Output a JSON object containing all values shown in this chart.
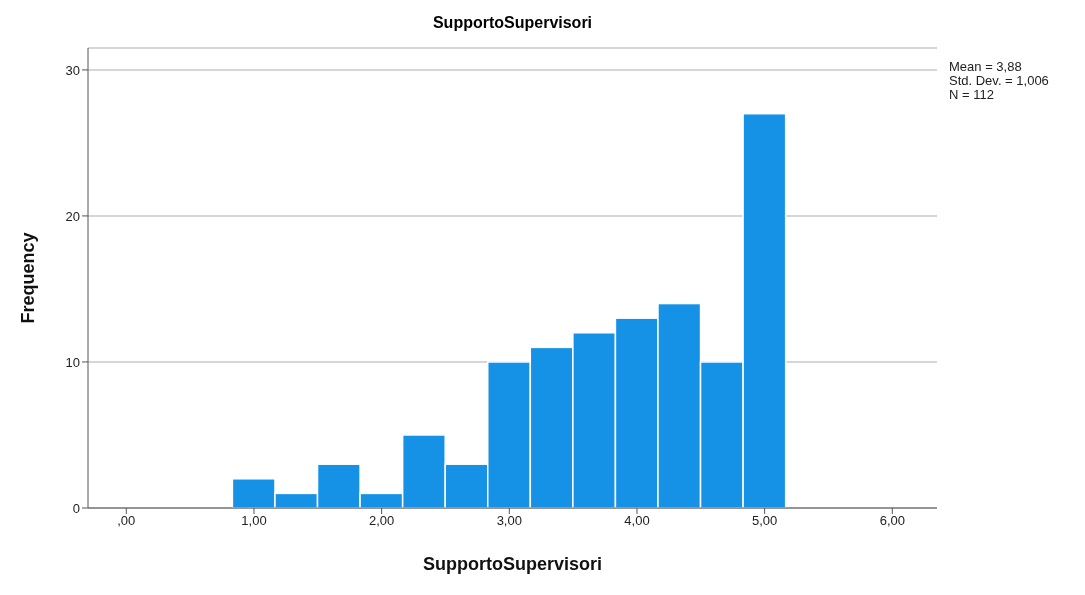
{
  "chart_data": {
    "type": "histogram",
    "title": "SupportoSupervisori",
    "xlabel": "SupportoSupervisori",
    "ylabel": "Frequency",
    "bins": [
      0.8333,
      1.1667,
      1.5,
      1.8333,
      2.1667,
      2.5,
      2.8333,
      3.1667,
      3.5,
      3.8333,
      4.1667,
      4.5,
      4.8333,
      5.1667
    ],
    "values": [
      2,
      1,
      3,
      1,
      5,
      3,
      10,
      11,
      12,
      13,
      14,
      10,
      27
    ],
    "color": "#1591e6",
    "xlim": [
      -0.3,
      6.35
    ],
    "xticks": [
      {
        "value": 0,
        "label": ",00"
      },
      {
        "value": 1,
        "label": "1,00"
      },
      {
        "value": 2,
        "label": "2,00"
      },
      {
        "value": 3,
        "label": "3,00"
      },
      {
        "value": 4,
        "label": "4,00"
      },
      {
        "value": 5,
        "label": "5,00"
      },
      {
        "value": 6,
        "label": "6,00"
      }
    ],
    "ylim": [
      0,
      31.5
    ],
    "yticks": [
      0,
      10,
      20,
      30
    ],
    "grid": "y",
    "annotations": [
      "Mean = 3,88",
      "Std. Dev. = 1,006",
      "N = 112"
    ]
  }
}
